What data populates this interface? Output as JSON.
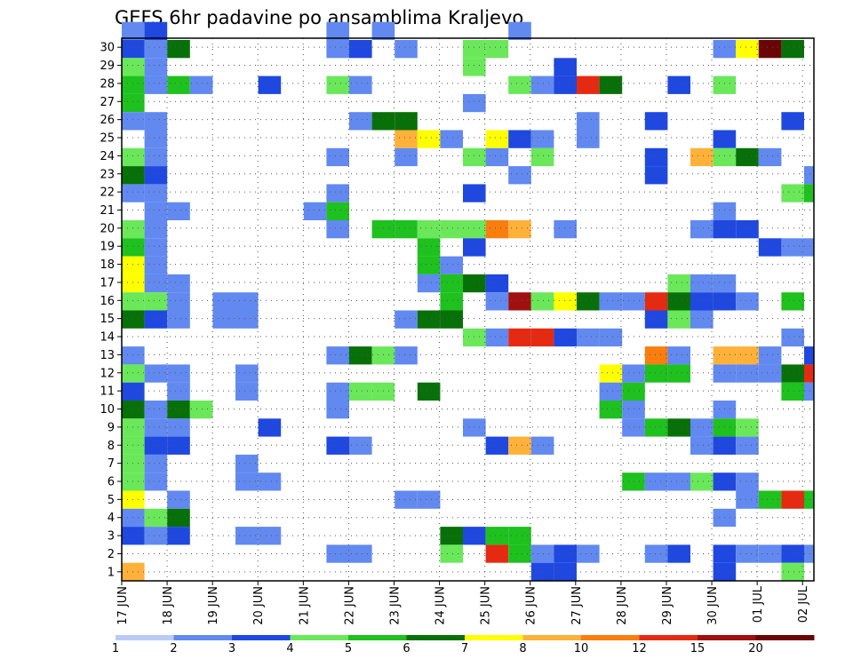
{
  "chart_data": {
    "type": "heatmap",
    "title": "GEFS 6hr padavine po ansamblima Kraljevo",
    "xlabel": "",
    "ylabel": "",
    "x_tick_labels": [
      "17 JUN",
      "18 JUN",
      "19 JUN",
      "20 JUN",
      "21 JUN",
      "22 JUN",
      "23 JUN",
      "24 JUN",
      "25 JUN",
      "26 JUN",
      "27 JUN",
      "28 JUN",
      "29 JUN",
      "30 JUN",
      "01 JUL",
      "02 JUL"
    ],
    "y_tick_labels": [
      "1",
      "2",
      "3",
      "4",
      "5",
      "6",
      "7",
      "8",
      "9",
      "10",
      "11",
      "12",
      "13",
      "14",
      "15",
      "16",
      "17",
      "18",
      "19",
      "20",
      "21",
      "22",
      "23",
      "24",
      "25",
      "26",
      "27",
      "28",
      "29",
      "30"
    ],
    "xlim": [
      0,
      61
    ],
    "ylim": [
      0,
      30
    ],
    "grid": true,
    "colorbar": {
      "levels": [
        "1",
        "2",
        "3",
        "4",
        "5",
        "6",
        "7",
        "8",
        "10",
        "12",
        "15",
        "20"
      ],
      "colors": [
        "#bccbf5",
        "#6189f0",
        "#1f48e0",
        "#6ae85a",
        "#1ec11e",
        "#087008",
        "#ffff00",
        "#ffb13a",
        "#fa7d10",
        "#e62a12",
        "#a01010",
        "#6a0505"
      ]
    },
    "cells": [
      [
        0,
        30,
        1
      ],
      [
        1,
        30,
        2
      ],
      [
        9,
        30,
        1
      ],
      [
        11,
        30,
        1
      ],
      [
        17,
        30,
        1
      ],
      [
        0,
        29,
        2
      ],
      [
        1,
        29,
        1
      ],
      [
        2,
        29,
        5
      ],
      [
        9,
        29,
        1
      ],
      [
        10,
        29,
        2
      ],
      [
        12,
        29,
        1
      ],
      [
        15,
        29,
        3
      ],
      [
        16,
        29,
        3
      ],
      [
        26,
        29,
        1
      ],
      [
        27,
        29,
        6
      ],
      [
        28,
        29,
        11
      ],
      [
        29,
        29,
        5
      ],
      [
        31,
        29,
        2
      ],
      [
        32,
        29,
        4
      ],
      [
        0,
        28,
        3
      ],
      [
        1,
        28,
        1
      ],
      [
        15,
        28,
        3
      ],
      [
        19,
        28,
        2
      ],
      [
        33,
        28,
        2
      ],
      [
        34,
        28,
        4
      ],
      [
        0,
        27,
        4
      ],
      [
        1,
        27,
        1
      ],
      [
        2,
        27,
        4
      ],
      [
        3,
        27,
        1
      ],
      [
        6,
        27,
        2
      ],
      [
        9,
        27,
        3
      ],
      [
        10,
        27,
        1
      ],
      [
        17,
        27,
        3
      ],
      [
        18,
        27,
        1
      ],
      [
        19,
        27,
        2
      ],
      [
        20,
        27,
        9
      ],
      [
        21,
        27,
        5
      ],
      [
        24,
        27,
        2
      ],
      [
        26,
        27,
        3
      ],
      [
        33,
        27,
        1
      ],
      [
        0,
        26,
        4
      ],
      [
        15,
        26,
        1
      ],
      [
        33,
        26,
        1
      ],
      [
        0,
        25,
        1
      ],
      [
        1,
        25,
        1
      ],
      [
        10,
        25,
        1
      ],
      [
        11,
        25,
        5
      ],
      [
        12,
        25,
        5
      ],
      [
        20,
        25,
        1
      ],
      [
        23,
        25,
        2
      ],
      [
        29,
        25,
        2
      ],
      [
        31,
        25,
        1
      ],
      [
        32,
        25,
        3
      ],
      [
        33,
        25,
        1
      ],
      [
        1,
        24,
        1
      ],
      [
        12,
        24,
        7
      ],
      [
        13,
        24,
        6
      ],
      [
        14,
        24,
        1
      ],
      [
        16,
        24,
        6
      ],
      [
        17,
        24,
        2
      ],
      [
        18,
        24,
        1
      ],
      [
        20,
        24,
        1
      ],
      [
        26,
        24,
        2
      ],
      [
        0,
        23,
        3
      ],
      [
        1,
        23,
        1
      ],
      [
        9,
        23,
        1
      ],
      [
        12,
        23,
        1
      ],
      [
        15,
        23,
        3
      ],
      [
        16,
        23,
        1
      ],
      [
        18,
        23,
        3
      ],
      [
        23,
        23,
        2
      ],
      [
        25,
        23,
        7
      ],
      [
        26,
        23,
        3
      ],
      [
        27,
        23,
        5
      ],
      [
        28,
        23,
        1
      ],
      [
        0,
        22,
        5
      ],
      [
        1,
        22,
        2
      ],
      [
        17,
        22,
        1
      ],
      [
        23,
        22,
        2
      ],
      [
        30,
        22,
        1
      ],
      [
        31,
        22,
        1
      ],
      [
        32,
        22,
        1
      ],
      [
        0,
        21,
        1
      ],
      [
        1,
        21,
        1
      ],
      [
        9,
        21,
        1
      ],
      [
        15,
        21,
        2
      ],
      [
        29,
        21,
        3
      ],
      [
        30,
        21,
        4
      ],
      [
        1,
        20,
        1
      ],
      [
        2,
        20,
        1
      ],
      [
        8,
        20,
        1
      ],
      [
        9,
        20,
        4
      ],
      [
        26,
        20,
        1
      ],
      [
        32,
        20,
        5
      ],
      [
        33,
        20,
        2
      ],
      [
        0,
        19,
        3
      ],
      [
        1,
        19,
        1
      ],
      [
        9,
        19,
        1
      ],
      [
        11,
        19,
        4
      ],
      [
        12,
        19,
        4
      ],
      [
        13,
        19,
        3
      ],
      [
        14,
        19,
        3
      ],
      [
        15,
        19,
        3
      ],
      [
        16,
        19,
        8
      ],
      [
        17,
        19,
        7
      ],
      [
        19,
        19,
        1
      ],
      [
        25,
        19,
        1
      ],
      [
        26,
        19,
        2
      ],
      [
        27,
        19,
        2
      ],
      [
        33,
        19,
        1
      ],
      [
        0,
        18,
        4
      ],
      [
        1,
        18,
        1
      ],
      [
        13,
        18,
        4
      ],
      [
        15,
        18,
        2
      ],
      [
        28,
        18,
        2
      ],
      [
        29,
        18,
        1
      ],
      [
        30,
        18,
        1
      ],
      [
        32,
        18,
        1
      ],
      [
        33,
        18,
        2
      ],
      [
        0,
        17,
        6
      ],
      [
        1,
        17,
        1
      ],
      [
        13,
        17,
        4
      ],
      [
        14,
        17,
        1
      ],
      [
        32,
        17,
        1
      ],
      [
        0,
        16,
        6
      ],
      [
        1,
        16,
        1
      ],
      [
        2,
        16,
        1
      ],
      [
        13,
        16,
        1
      ],
      [
        14,
        16,
        4
      ],
      [
        15,
        16,
        5
      ],
      [
        16,
        16,
        2
      ],
      [
        24,
        16,
        3
      ],
      [
        25,
        16,
        1
      ],
      [
        26,
        16,
        1
      ],
      [
        0,
        15,
        3
      ],
      [
        1,
        15,
        3
      ],
      [
        2,
        15,
        1
      ],
      [
        4,
        15,
        1
      ],
      [
        5,
        15,
        1
      ],
      [
        14,
        15,
        4
      ],
      [
        16,
        15,
        1
      ],
      [
        17,
        15,
        10
      ],
      [
        18,
        15,
        3
      ],
      [
        19,
        15,
        6
      ],
      [
        20,
        15,
        5
      ],
      [
        21,
        15,
        1
      ],
      [
        22,
        15,
        1
      ],
      [
        23,
        15,
        9
      ],
      [
        24,
        15,
        5
      ],
      [
        25,
        15,
        2
      ],
      [
        26,
        15,
        2
      ],
      [
        27,
        15,
        1
      ],
      [
        29,
        15,
        4
      ],
      [
        0,
        14,
        5
      ],
      [
        1,
        14,
        2
      ],
      [
        2,
        14,
        1
      ],
      [
        4,
        14,
        1
      ],
      [
        5,
        14,
        1
      ],
      [
        12,
        14,
        1
      ],
      [
        13,
        14,
        5
      ],
      [
        14,
        14,
        5
      ],
      [
        23,
        14,
        2
      ],
      [
        24,
        14,
        3
      ],
      [
        25,
        14,
        1
      ],
      [
        31,
        14,
        1
      ],
      [
        32,
        14,
        2
      ],
      [
        15,
        13,
        3
      ],
      [
        16,
        13,
        1
      ],
      [
        17,
        13,
        9
      ],
      [
        18,
        13,
        9
      ],
      [
        19,
        13,
        2
      ],
      [
        20,
        13,
        1
      ],
      [
        21,
        13,
        1
      ],
      [
        29,
        13,
        1
      ],
      [
        0,
        12,
        1
      ],
      [
        9,
        12,
        1
      ],
      [
        10,
        12,
        5
      ],
      [
        11,
        12,
        3
      ],
      [
        12,
        12,
        1
      ],
      [
        23,
        12,
        8
      ],
      [
        24,
        12,
        1
      ],
      [
        26,
        12,
        7
      ],
      [
        27,
        12,
        7
      ],
      [
        28,
        12,
        1
      ],
      [
        30,
        12,
        2
      ],
      [
        0,
        11,
        3
      ],
      [
        1,
        11,
        1
      ],
      [
        2,
        11,
        1
      ],
      [
        5,
        11,
        1
      ],
      [
        21,
        11,
        6
      ],
      [
        22,
        11,
        1
      ],
      [
        23,
        11,
        4
      ],
      [
        24,
        11,
        4
      ],
      [
        26,
        11,
        1
      ],
      [
        27,
        11,
        1
      ],
      [
        28,
        11,
        1
      ],
      [
        29,
        11,
        5
      ],
      [
        30,
        11,
        9
      ],
      [
        31,
        11,
        1
      ],
      [
        32,
        11,
        1
      ],
      [
        0,
        10,
        2
      ],
      [
        2,
        10,
        1
      ],
      [
        5,
        10,
        1
      ],
      [
        9,
        10,
        1
      ],
      [
        10,
        10,
        3
      ],
      [
        11,
        10,
        3
      ],
      [
        13,
        10,
        5
      ],
      [
        21,
        10,
        1
      ],
      [
        22,
        10,
        4
      ],
      [
        29,
        10,
        4
      ],
      [
        30,
        10,
        1
      ],
      [
        0,
        9,
        5
      ],
      [
        1,
        9,
        1
      ],
      [
        2,
        9,
        5
      ],
      [
        3,
        9,
        3
      ],
      [
        9,
        9,
        1
      ],
      [
        21,
        9,
        4
      ],
      [
        22,
        9,
        1
      ],
      [
        26,
        9,
        1
      ],
      [
        0,
        8,
        3
      ],
      [
        1,
        8,
        1
      ],
      [
        2,
        8,
        1
      ],
      [
        6,
        8,
        2
      ],
      [
        15,
        8,
        1
      ],
      [
        22,
        8,
        1
      ],
      [
        23,
        8,
        4
      ],
      [
        24,
        8,
        5
      ],
      [
        25,
        8,
        1
      ],
      [
        26,
        8,
        4
      ],
      [
        27,
        8,
        3
      ],
      [
        0,
        7,
        3
      ],
      [
        1,
        7,
        2
      ],
      [
        2,
        7,
        2
      ],
      [
        9,
        7,
        2
      ],
      [
        10,
        7,
        1
      ],
      [
        16,
        7,
        2
      ],
      [
        17,
        7,
        7
      ],
      [
        18,
        7,
        1
      ],
      [
        25,
        7,
        1
      ],
      [
        26,
        7,
        2
      ],
      [
        27,
        7,
        1
      ],
      [
        0,
        6,
        3
      ],
      [
        1,
        6,
        1
      ],
      [
        5,
        6,
        1
      ],
      [
        0,
        5,
        3
      ],
      [
        1,
        5,
        1
      ],
      [
        5,
        5,
        1
      ],
      [
        6,
        5,
        1
      ],
      [
        22,
        5,
        4
      ],
      [
        23,
        5,
        1
      ],
      [
        24,
        5,
        1
      ],
      [
        25,
        5,
        3
      ],
      [
        26,
        5,
        2
      ],
      [
        27,
        5,
        1
      ],
      [
        31,
        5,
        2
      ],
      [
        32,
        5,
        2
      ],
      [
        33,
        5,
        1
      ],
      [
        35,
        5,
        1
      ],
      [
        36,
        5,
        1
      ],
      [
        0,
        4,
        6
      ],
      [
        2,
        4,
        1
      ],
      [
        12,
        4,
        1
      ],
      [
        13,
        4,
        1
      ],
      [
        27,
        4,
        1
      ],
      [
        28,
        4,
        4
      ],
      [
        29,
        4,
        9
      ],
      [
        30,
        4,
        4
      ],
      [
        34,
        4,
        3
      ],
      [
        35,
        4,
        5
      ],
      [
        0,
        3,
        1
      ],
      [
        1,
        3,
        3
      ],
      [
        2,
        3,
        5
      ],
      [
        26,
        3,
        1
      ],
      [
        32,
        3,
        1
      ],
      [
        0,
        2,
        2
      ],
      [
        1,
        2,
        1
      ],
      [
        2,
        2,
        2
      ],
      [
        5,
        2,
        1
      ],
      [
        6,
        2,
        1
      ],
      [
        14,
        2,
        5
      ],
      [
        15,
        2,
        2
      ],
      [
        16,
        2,
        4
      ],
      [
        17,
        2,
        4
      ],
      [
        9,
        1,
        1
      ],
      [
        10,
        1,
        1
      ],
      [
        14,
        1,
        3
      ],
      [
        16,
        1,
        9
      ],
      [
        17,
        1,
        4
      ],
      [
        18,
        1,
        1
      ],
      [
        19,
        1,
        2
      ],
      [
        20,
        1,
        1
      ],
      [
        23,
        1,
        1
      ],
      [
        24,
        1,
        2
      ],
      [
        26,
        1,
        2
      ],
      [
        27,
        1,
        1
      ],
      [
        28,
        1,
        1
      ],
      [
        29,
        1,
        2
      ],
      [
        30,
        1,
        1
      ],
      [
        35,
        1,
        2
      ],
      [
        36,
        1,
        4
      ],
      [
        0,
        0,
        7
      ],
      [
        18,
        0,
        2
      ],
      [
        19,
        0,
        2
      ],
      [
        26,
        0,
        2
      ],
      [
        29,
        0,
        3
      ],
      [
        31,
        0,
        2
      ]
    ]
  }
}
